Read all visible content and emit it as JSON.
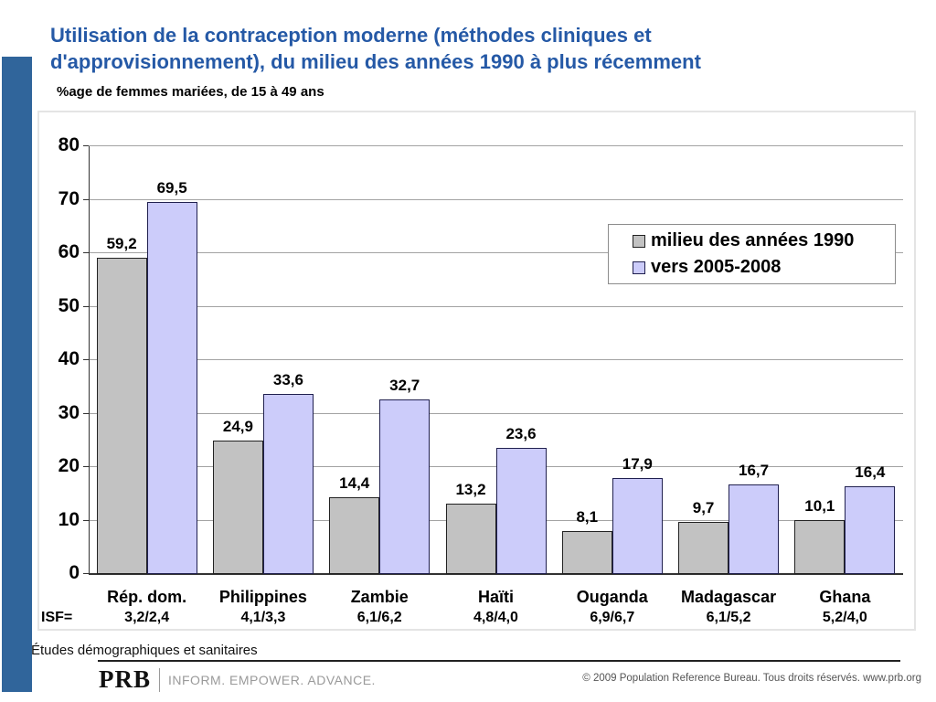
{
  "slide": {
    "title": "Utilisation de la contraception moderne (méthodes cliniques et d'approvisionnement), du milieu des années 1990 à plus récemment",
    "subtitle": "%age de femmes mariées, de 15 à 49 ans"
  },
  "chart_data": {
    "type": "bar",
    "title": "",
    "xlabel": "",
    "ylabel": "",
    "categories": [
      "Rép. dom.",
      "Philippines",
      "Zambie",
      "Haïti",
      "Ouganda",
      "Madagascar",
      "Ghana"
    ],
    "series": [
      {
        "name": "milieu des années 1990",
        "color": "#c2c2c2",
        "border_color": "#222222",
        "values": [
          59.2,
          24.9,
          14.4,
          13.2,
          8.1,
          9.7,
          10.1
        ],
        "labels": [
          "59,2",
          "24,9",
          "14,4",
          "13,2",
          "8,1",
          "9,7",
          "10,1"
        ]
      },
      {
        "name": "vers 2005-2008",
        "color": "#ccccfa",
        "border_color": "#20204f",
        "values": [
          69.5,
          33.6,
          32.7,
          23.6,
          17.9,
          16.7,
          16.4
        ],
        "labels": [
          "69,5",
          "33,6",
          "32,7",
          "23,6",
          "17,9",
          "16,7",
          "16,4"
        ]
      }
    ],
    "ylim": [
      0,
      80
    ],
    "yticks": [
      "0",
      "10",
      "20",
      "30",
      "40",
      "50",
      "60",
      "70",
      "80"
    ],
    "grid": true,
    "legend_position": "upper-right"
  },
  "isf": {
    "label": "ISF=",
    "values": [
      "3,2/2,4",
      "4,1/3,3",
      "6,1/6,2",
      "4,8/4,0",
      "6,9/6,7",
      "6,1/5,2",
      "5,2/4,0"
    ]
  },
  "footer": {
    "source": "Études démographiques et sanitaires",
    "logo_text": "PRB",
    "logo_tagline": "INFORM. EMPOWER. ADVANCE.",
    "copyright": "© 2009 Population Reference Bureau. Tous droits réservés. www.prb.org"
  },
  "colors": {
    "accent_bar": "#30659b",
    "title_blue": "#2559a6"
  }
}
